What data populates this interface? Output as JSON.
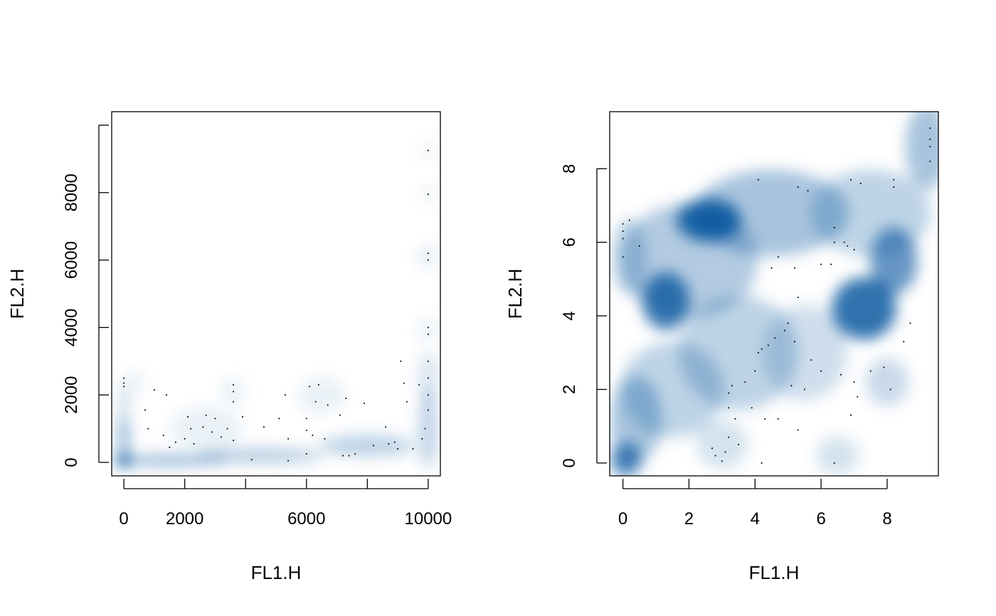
{
  "chart_data": [
    {
      "type": "scatter",
      "style": "smoothed density scatter",
      "xlabel": "FL1.H",
      "ylabel": "FL2.H",
      "xlim": [
        -400,
        10400
      ],
      "ylim": [
        -400,
        10400
      ],
      "xticks": [
        0,
        2000,
        4000,
        6000,
        8000,
        10000
      ],
      "xtick_labels": [
        "0",
        "2000",
        "",
        "6000",
        "",
        "10000"
      ],
      "yticks": [
        0,
        2000,
        4000,
        6000,
        8000,
        10000
      ],
      "ytick_labels": [
        "0",
        "2000",
        "4000",
        "6000",
        "8000",
        ""
      ],
      "grid": false,
      "density_color": "#08519c",
      "density_blobs": [
        {
          "x": 0,
          "y": 50,
          "sx": 180,
          "sy": 160,
          "w": 1.0
        },
        {
          "x": 0,
          "y": 700,
          "sx": 160,
          "sy": 500,
          "w": 0.45
        },
        {
          "x": 0,
          "y": 1700,
          "sx": 160,
          "sy": 500,
          "w": 0.2
        },
        {
          "x": 1500,
          "y": 60,
          "sx": 1500,
          "sy": 120,
          "w": 0.5
        },
        {
          "x": 4500,
          "y": 200,
          "sx": 1600,
          "sy": 160,
          "w": 0.35
        },
        {
          "x": 8000,
          "y": 500,
          "sx": 1200,
          "sy": 250,
          "w": 0.3
        },
        {
          "x": 10000,
          "y": 1000,
          "sx": 250,
          "sy": 900,
          "w": 0.28
        },
        {
          "x": 10000,
          "y": 2500,
          "sx": 250,
          "sy": 600,
          "w": 0.18
        },
        {
          "x": 10000,
          "y": 6100,
          "sx": 250,
          "sy": 250,
          "w": 0.12
        },
        {
          "x": 10000,
          "y": 3900,
          "sx": 250,
          "sy": 250,
          "w": 0.1
        },
        {
          "x": 10000,
          "y": 7950,
          "sx": 250,
          "sy": 150,
          "w": 0.08
        },
        {
          "x": 10000,
          "y": 9250,
          "sx": 250,
          "sy": 150,
          "w": 0.08
        },
        {
          "x": 2700,
          "y": 1000,
          "sx": 900,
          "sy": 500,
          "w": 0.1
        },
        {
          "x": 3600,
          "y": 2100,
          "sx": 300,
          "sy": 300,
          "w": 0.1
        },
        {
          "x": 6500,
          "y": 2000,
          "sx": 600,
          "sy": 400,
          "w": 0.1
        },
        {
          "x": 300,
          "y": 2400,
          "sx": 300,
          "sy": 200,
          "w": 0.1
        }
      ],
      "points": [
        [
          0,
          2500
        ],
        [
          0,
          2350
        ],
        [
          0,
          2250
        ],
        [
          700,
          1550
        ],
        [
          1000,
          2150
        ],
        [
          1400,
          2000
        ],
        [
          800,
          1000
        ],
        [
          1300,
          800
        ],
        [
          1500,
          450
        ],
        [
          1700,
          600
        ],
        [
          2000,
          700
        ],
        [
          2100,
          1350
        ],
        [
          2200,
          1000
        ],
        [
          2300,
          550
        ],
        [
          2600,
          1050
        ],
        [
          2700,
          1400
        ],
        [
          2900,
          900
        ],
        [
          3000,
          1300
        ],
        [
          3200,
          750
        ],
        [
          3400,
          1000
        ],
        [
          3600,
          2300
        ],
        [
          3600,
          2100
        ],
        [
          3600,
          1800
        ],
        [
          3600,
          650
        ],
        [
          3900,
          1350
        ],
        [
          4200,
          80
        ],
        [
          4600,
          1050
        ],
        [
          5100,
          1300
        ],
        [
          5300,
          2000
        ],
        [
          5400,
          700
        ],
        [
          5400,
          50
        ],
        [
          6000,
          1300
        ],
        [
          6000,
          950
        ],
        [
          6000,
          250
        ],
        [
          6100,
          2250
        ],
        [
          6200,
          800
        ],
        [
          6300,
          1800
        ],
        [
          6400,
          2300
        ],
        [
          6600,
          700
        ],
        [
          6700,
          1700
        ],
        [
          7100,
          1400
        ],
        [
          7200,
          200
        ],
        [
          7300,
          1900
        ],
        [
          7400,
          200
        ],
        [
          7600,
          250
        ],
        [
          7900,
          1750
        ],
        [
          8200,
          500
        ],
        [
          8600,
          1050
        ],
        [
          8700,
          550
        ],
        [
          8900,
          600
        ],
        [
          9000,
          400
        ],
        [
          9100,
          3000
        ],
        [
          9200,
          2350
        ],
        [
          9300,
          1800
        ],
        [
          9500,
          400
        ],
        [
          9700,
          2300
        ],
        [
          9800,
          700
        ],
        [
          9900,
          1000
        ],
        [
          10000,
          1550
        ],
        [
          10000,
          2000
        ],
        [
          10000,
          2500
        ],
        [
          10000,
          3000
        ],
        [
          10000,
          3800
        ],
        [
          10000,
          4000
        ],
        [
          10000,
          6000
        ],
        [
          10000,
          6200
        ],
        [
          10000,
          7950
        ],
        [
          10000,
          9250
        ]
      ]
    },
    {
      "type": "scatter",
      "style": "smoothed density scatter",
      "xlabel": "FL1.H",
      "ylabel": "FL2.H",
      "xlim": [
        -0.4,
        9.55
      ],
      "ylim": [
        -0.35,
        9.55
      ],
      "xticks": [
        0,
        2,
        4,
        6,
        8
      ],
      "xtick_labels": [
        "0",
        "2",
        "4",
        "6",
        "8"
      ],
      "yticks": [
        0,
        2,
        4,
        6,
        8
      ],
      "ytick_labels": [
        "0",
        "2",
        "4",
        "6",
        "8"
      ],
      "grid": false,
      "density_color": "#08519c",
      "density_blobs": [
        {
          "x": 2.6,
          "y": 6.6,
          "sx": 0.75,
          "sy": 0.45,
          "w": 1.0
        },
        {
          "x": 1.3,
          "y": 4.4,
          "sx": 0.55,
          "sy": 0.6,
          "w": 0.9
        },
        {
          "x": 7.3,
          "y": 4.2,
          "sx": 0.75,
          "sy": 0.65,
          "w": 0.95
        },
        {
          "x": 8.2,
          "y": 5.5,
          "sx": 0.55,
          "sy": 0.7,
          "w": 0.7
        },
        {
          "x": 0.1,
          "y": 0.1,
          "sx": 0.35,
          "sy": 0.35,
          "w": 0.85
        },
        {
          "x": 0.4,
          "y": 1.2,
          "sx": 0.6,
          "sy": 0.9,
          "w": 0.4
        },
        {
          "x": 2.0,
          "y": 5.5,
          "sx": 1.6,
          "sy": 1.2,
          "w": 0.35
        },
        {
          "x": 4.5,
          "y": 6.8,
          "sx": 1.8,
          "sy": 0.9,
          "w": 0.4
        },
        {
          "x": 7.5,
          "y": 6.8,
          "sx": 1.4,
          "sy": 0.9,
          "w": 0.3
        },
        {
          "x": 9.2,
          "y": 8.6,
          "sx": 0.5,
          "sy": 0.9,
          "w": 0.4
        },
        {
          "x": 3.5,
          "y": 3.0,
          "sx": 1.4,
          "sy": 1.2,
          "w": 0.3
        },
        {
          "x": 5.5,
          "y": 3.0,
          "sx": 1.0,
          "sy": 1.0,
          "w": 0.22
        },
        {
          "x": 1.5,
          "y": 2.0,
          "sx": 1.2,
          "sy": 1.0,
          "w": 0.3
        },
        {
          "x": 0.2,
          "y": 5.6,
          "sx": 0.4,
          "sy": 0.8,
          "w": 0.3
        },
        {
          "x": 8.0,
          "y": 2.2,
          "sx": 0.5,
          "sy": 0.5,
          "w": 0.25
        },
        {
          "x": 6.5,
          "y": 0.2,
          "sx": 0.5,
          "sy": 0.4,
          "w": 0.2
        },
        {
          "x": 3.0,
          "y": 0.5,
          "sx": 0.6,
          "sy": 0.5,
          "w": 0.2
        }
      ],
      "points": [
        [
          0,
          6.5
        ],
        [
          0,
          6.3
        ],
        [
          0,
          6.1
        ],
        [
          0,
          5.6
        ],
        [
          0.2,
          6.6
        ],
        [
          0.5,
          5.9
        ],
        [
          2.7,
          0.4
        ],
        [
          2.8,
          0.2
        ],
        [
          3.0,
          0.05
        ],
        [
          3.1,
          0.3
        ],
        [
          3.2,
          0.7
        ],
        [
          3.2,
          1.5
        ],
        [
          3.2,
          1.9
        ],
        [
          3.3,
          2.1
        ],
        [
          3.4,
          1.2
        ],
        [
          3.5,
          0.5
        ],
        [
          3.7,
          2.2
        ],
        [
          3.9,
          1.5
        ],
        [
          4.0,
          2.5
        ],
        [
          4.1,
          3.0
        ],
        [
          4.2,
          3.1
        ],
        [
          4.3,
          1.2
        ],
        [
          4.4,
          3.2
        ],
        [
          4.5,
          5.3
        ],
        [
          4.6,
          3.4
        ],
        [
          4.7,
          5.6
        ],
        [
          4.7,
          1.2
        ],
        [
          4.9,
          3.6
        ],
        [
          5.0,
          3.8
        ],
        [
          5.1,
          2.1
        ],
        [
          5.2,
          3.3
        ],
        [
          5.2,
          5.3
        ],
        [
          5.3,
          4.5
        ],
        [
          5.3,
          0.9
        ],
        [
          5.3,
          7.5
        ],
        [
          5.5,
          2.0
        ],
        [
          5.6,
          7.4
        ],
        [
          5.7,
          2.8
        ],
        [
          6.0,
          2.5
        ],
        [
          6.0,
          5.4
        ],
        [
          6.3,
          5.4
        ],
        [
          6.4,
          6.4
        ],
        [
          6.4,
          6.0
        ],
        [
          6.4,
          0.0
        ],
        [
          6.6,
          2.4
        ],
        [
          6.7,
          6.0
        ],
        [
          6.8,
          5.9
        ],
        [
          6.9,
          7.7
        ],
        [
          6.9,
          1.3
        ],
        [
          7.0,
          5.8
        ],
        [
          7.0,
          2.2
        ],
        [
          7.1,
          1.8
        ],
        [
          7.2,
          7.6
        ],
        [
          7.5,
          2.5
        ],
        [
          7.9,
          2.6
        ],
        [
          8.1,
          2.0
        ],
        [
          8.2,
          7.7
        ],
        [
          8.2,
          7.5
        ],
        [
          8.5,
          3.3
        ],
        [
          8.7,
          3.8
        ],
        [
          4.1,
          7.7
        ],
        [
          4.2,
          0.0
        ],
        [
          9.3,
          9.1
        ],
        [
          9.3,
          8.8
        ],
        [
          9.3,
          8.6
        ],
        [
          9.3,
          8.2
        ]
      ]
    }
  ]
}
